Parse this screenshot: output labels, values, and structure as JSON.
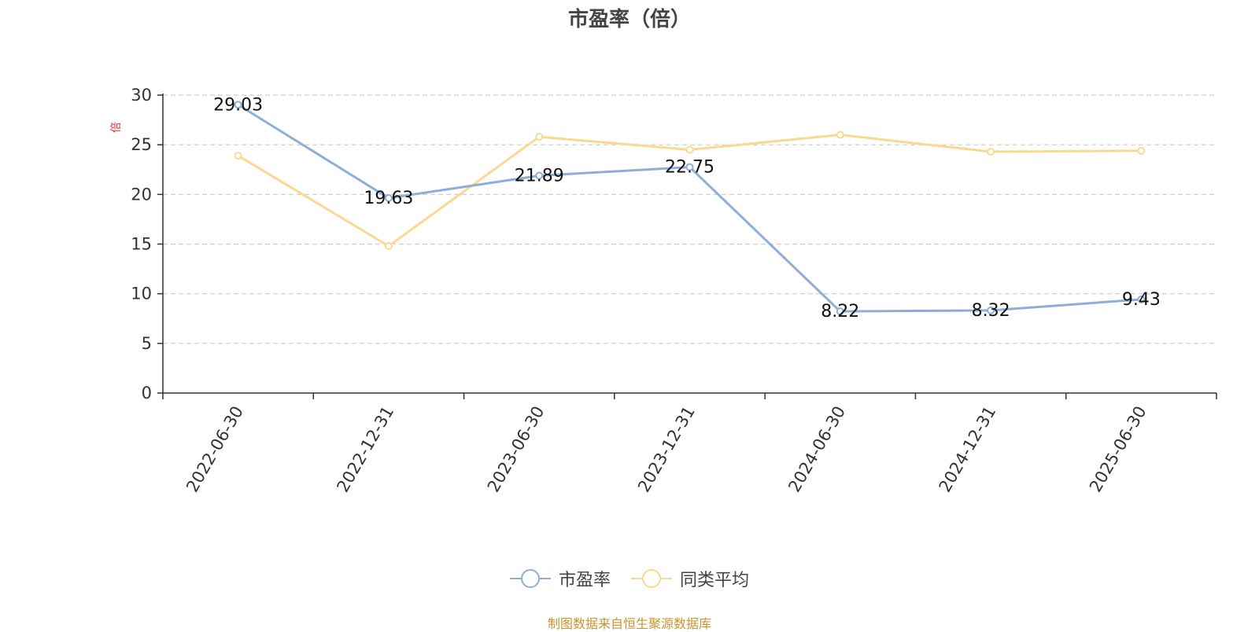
{
  "chart_data": {
    "type": "line",
    "title": "市盈率（倍）",
    "ylabel": "倍",
    "categories": [
      "2022-06-30",
      "2022-12-31",
      "2023-06-30",
      "2023-12-31",
      "2024-06-30",
      "2024-12-31",
      "2025-06-30"
    ],
    "ylim": [
      0,
      30
    ],
    "yticks": [
      0,
      5,
      10,
      15,
      20,
      25,
      30
    ],
    "grid": true,
    "legend_position": "bottom",
    "series": [
      {
        "name": "市盈率",
        "color": "#8eaed8",
        "values": [
          29.03,
          19.63,
          21.89,
          22.75,
          8.22,
          8.32,
          9.43
        ],
        "labels": [
          "29.03",
          "19.63",
          "21.89",
          "22.75",
          "8.22",
          "8.32",
          "9.43"
        ]
      },
      {
        "name": "同类平均",
        "color": "#fbd890",
        "values": [
          23.9,
          14.8,
          25.8,
          24.5,
          26.0,
          24.3,
          24.4
        ]
      }
    ]
  },
  "source": "制图数据来自恒生聚源数据库"
}
